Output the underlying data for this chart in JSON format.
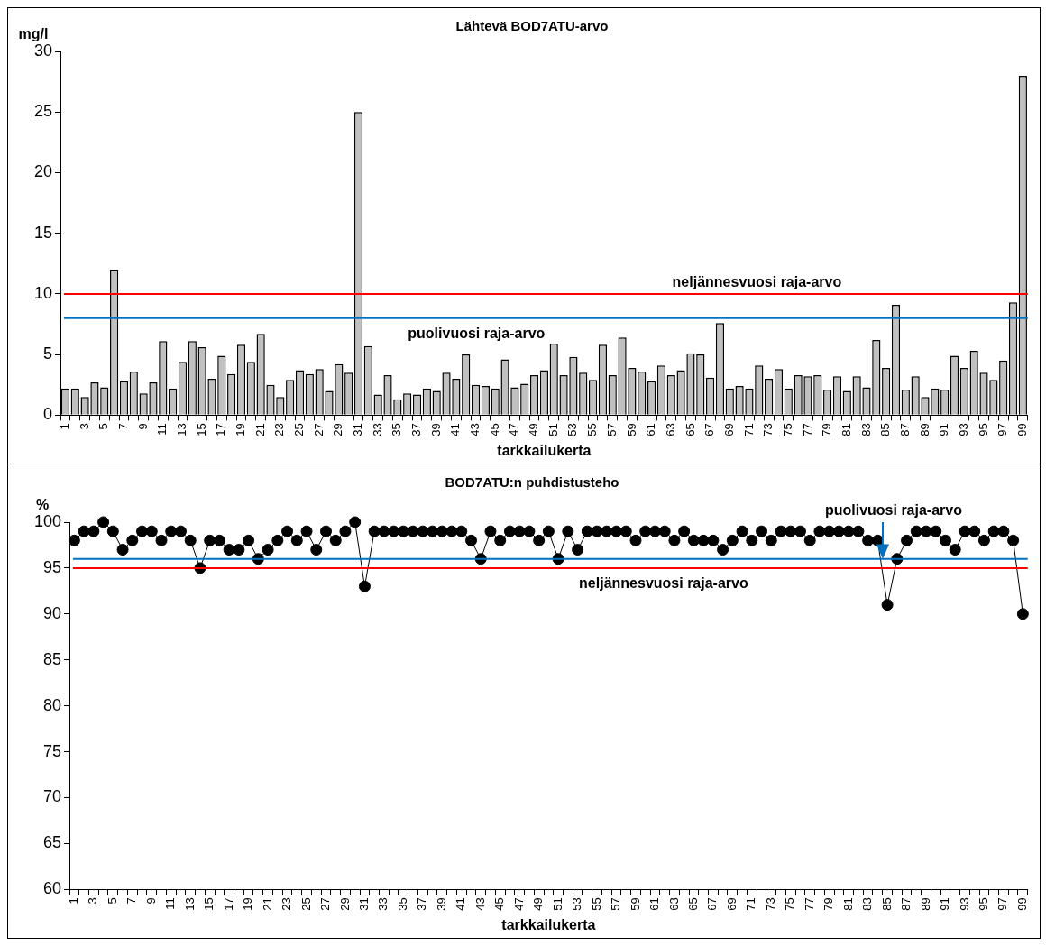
{
  "chart_data": [
    {
      "type": "bar",
      "title": "Lähtevä BOD7ATU-arvo",
      "ylabel": "mg/l",
      "xlabel": "tarkkailukerta",
      "categories": [
        "1",
        null,
        "3",
        null,
        "5",
        null,
        "7",
        null,
        "9",
        null,
        "11",
        null,
        "13",
        null,
        "15",
        null,
        "17",
        null,
        "19",
        null,
        "21",
        null,
        "23",
        null,
        "25",
        null,
        "27",
        null,
        "29",
        null,
        "31",
        null,
        "33",
        null,
        "35",
        null,
        "37",
        null,
        "39",
        null,
        "41",
        null,
        "43",
        null,
        "45",
        null,
        "47",
        null,
        "49",
        null,
        "51",
        null,
        "53",
        null,
        "55",
        null,
        "57",
        null,
        "59",
        null,
        "61",
        null,
        "63",
        null,
        "65",
        null,
        "67",
        null,
        "69",
        null,
        "71",
        null,
        "73",
        null,
        "75",
        null,
        "77",
        null,
        "79",
        null,
        "81",
        null,
        "83",
        null,
        "85",
        null,
        "87",
        null,
        "89",
        null,
        "91",
        null,
        "93",
        null,
        "95",
        null,
        "97",
        null,
        "99"
      ],
      "series": [
        {
          "color": "#c0c0c0",
          "values": [
            2.2,
            2.2,
            1.5,
            2.7,
            2.3,
            12,
            2.8,
            3.6,
            1.8,
            2.7,
            6.1,
            2.2,
            4.4,
            6.1,
            5.6,
            3.0,
            4.9,
            3.4,
            5.8,
            4.4,
            6.7,
            2.5,
            1.5,
            2.9,
            3.7,
            3.4,
            3.8,
            2.0,
            4.2,
            3.5,
            25,
            5.7,
            1.7,
            3.3,
            1.3,
            1.8,
            1.7,
            2.2,
            2.0,
            3.5,
            3.0,
            5.0,
            2.5,
            2.4,
            2.2,
            4.6,
            2.3,
            2.6,
            3.3,
            3.7,
            5.9,
            3.3,
            4.8,
            3.5,
            2.9,
            5.8,
            3.3,
            6.4,
            3.9,
            3.6,
            2.8,
            4.1,
            3.3,
            3.7,
            5.1,
            5.0,
            3.1,
            7.6,
            2.2,
            2.4,
            2.2,
            4.1,
            3.0,
            3.8,
            2.2,
            3.3,
            3.2,
            3.3,
            2.1,
            3.2,
            2.0,
            3.2,
            2.3,
            6.2,
            3.9,
            9.1,
            2.1,
            3.2,
            1.5,
            2.2,
            2.1,
            4.9,
            3.9,
            5.3,
            3.5,
            2.9,
            4.5,
            9.3,
            28
          ]
        }
      ],
      "ylim": [
        0,
        30
      ],
      "yticks": [
        0,
        5,
        10,
        15,
        20,
        25,
        30
      ],
      "grid": false,
      "legend": false,
      "ref_lines": [
        {
          "axis": "y",
          "value": 10,
          "label": "neljännesvuosi raja-arvo",
          "color": "#ff0000"
        },
        {
          "axis": "y",
          "value": 8,
          "label": "puolivuosi raja-arvo",
          "color": "#0070c0"
        }
      ]
    },
    {
      "type": "line",
      "title": "BOD7ATU:n puhdistusteho",
      "ylabel": "%",
      "xlabel": "tarkkailukerta",
      "categories": [
        "1",
        null,
        "3",
        null,
        "5",
        null,
        "7",
        null,
        "9",
        null,
        "11",
        null,
        "13",
        null,
        "15",
        null,
        "17",
        null,
        "19",
        null,
        "21",
        null,
        "23",
        null,
        "25",
        null,
        "27",
        null,
        "29",
        null,
        "31",
        null,
        "33",
        null,
        "35",
        null,
        "37",
        null,
        "39",
        null,
        "41",
        null,
        "43",
        null,
        "45",
        null,
        "47",
        null,
        "49",
        null,
        "51",
        null,
        "53",
        null,
        "55",
        null,
        "57",
        null,
        "59",
        null,
        "61",
        null,
        "63",
        null,
        "65",
        null,
        "67",
        null,
        "69",
        null,
        "71",
        null,
        "73",
        null,
        "75",
        null,
        "77",
        null,
        "79",
        null,
        "81",
        null,
        "83",
        null,
        "85",
        null,
        "87",
        null,
        "89",
        null,
        "91",
        null,
        "93",
        null,
        "95",
        null,
        "97",
        null,
        "99"
      ],
      "series": [
        {
          "color": "#000000",
          "values": [
            98,
            99,
            99,
            100,
            99,
            97,
            98,
            99,
            99,
            98,
            99,
            99,
            98,
            95,
            98,
            98,
            97,
            97,
            98,
            96,
            97,
            98,
            99,
            98,
            99,
            97,
            99,
            98,
            99,
            100,
            93,
            99,
            99,
            99,
            99,
            99,
            99,
            99,
            99,
            99,
            99,
            98,
            96,
            99,
            98,
            99,
            99,
            99,
            98,
            99,
            96,
            99,
            97,
            99,
            99,
            99,
            99,
            99,
            98,
            99,
            99,
            99,
            98,
            99,
            98,
            98,
            98,
            97,
            98,
            99,
            98,
            99,
            98,
            99,
            99,
            99,
            98,
            99,
            99,
            99,
            99,
            99,
            98,
            98,
            91,
            96,
            98,
            99,
            99,
            99,
            98,
            97,
            99,
            99,
            98,
            99,
            99,
            98,
            90
          ]
        }
      ],
      "ylim": [
        60,
        100
      ],
      "yticks": [
        60,
        65,
        70,
        75,
        80,
        85,
        90,
        95,
        100
      ],
      "grid": false,
      "legend": false,
      "marker": "circle",
      "line_style": "solid",
      "ref_lines": [
        {
          "axis": "y",
          "value": 96,
          "label": "puolivuosi raja-arvo",
          "color": "#0070c0"
        },
        {
          "axis": "y",
          "value": 95,
          "label": "neljännesvuosi raja-arvo",
          "color": "#ff0000"
        }
      ]
    }
  ]
}
